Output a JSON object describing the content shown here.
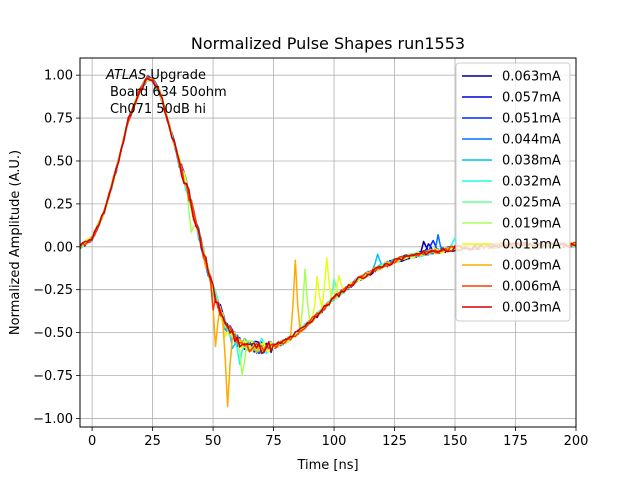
{
  "chart_data": {
    "type": "line",
    "title": "Normalized Pulse Shapes run1553",
    "xlabel": "Time [ns]",
    "ylabel": "Normalized Amplitude (A.U.)",
    "xlim": [
      -5,
      200
    ],
    "ylim": [
      -1.05,
      1.1
    ],
    "x_ticks": [
      0,
      25,
      50,
      75,
      100,
      125,
      150,
      175,
      200
    ],
    "x_tick_labels": [
      "0",
      "25",
      "50",
      "75",
      "100",
      "125",
      "150",
      "175",
      "200"
    ],
    "y_ticks": [
      -1.0,
      -0.75,
      -0.5,
      -0.25,
      0.0,
      0.25,
      0.5,
      0.75,
      1.0
    ],
    "y_tick_labels": [
      "−1.00",
      "−0.75",
      "−0.50",
      "−0.25",
      "0.00",
      "0.25",
      "0.50",
      "0.75",
      "1.00"
    ],
    "grid": true,
    "legend_position": "top-right",
    "annotation": {
      "atlas": "ATLAS",
      "line1_rest": " Upgrade",
      "line2": "Board 634 50ohm",
      "line3": "Ch071 50dB hi"
    },
    "base_shape": {
      "x": [
        -5,
        0,
        5,
        10,
        15,
        20,
        23,
        25,
        28,
        30,
        35,
        40,
        45,
        50,
        55,
        60,
        65,
        70,
        75,
        80,
        85,
        90,
        95,
        100,
        110,
        120,
        130,
        140,
        150,
        160,
        170,
        180,
        190,
        200
      ],
      "y": [
        0.0,
        0.05,
        0.2,
        0.45,
        0.74,
        0.92,
        0.98,
        0.97,
        0.9,
        0.8,
        0.55,
        0.3,
        0.02,
        -0.25,
        -0.45,
        -0.55,
        -0.58,
        -0.59,
        -0.58,
        -0.55,
        -0.5,
        -0.44,
        -0.37,
        -0.3,
        -0.19,
        -0.11,
        -0.06,
        -0.03,
        -0.01,
        0.0,
        0.01,
        0.01,
        0.01,
        0.01
      ]
    },
    "series": [
      {
        "name": "0.063mA",
        "color": "#00008f",
        "glitches": [
          [
            137,
            0.03
          ],
          [
            142,
            -0.05
          ]
        ]
      },
      {
        "name": "0.057mA",
        "color": "#0000d6",
        "glitches": [
          [
            62,
            -0.58
          ],
          [
            139,
            0.02
          ]
        ]
      },
      {
        "name": "0.051mA",
        "color": "#0029ff",
        "glitches": [
          [
            38,
            0.43
          ],
          [
            141,
            0.05
          ]
        ]
      },
      {
        "name": "0.044mA",
        "color": "#0073ff",
        "glitches": [
          [
            44,
            0.12
          ],
          [
            143,
            0.06
          ]
        ]
      },
      {
        "name": "0.038mA",
        "color": "#00c0ff",
        "glitches": [
          [
            58,
            -0.6
          ],
          [
            118,
            -0.05
          ]
        ]
      },
      {
        "name": "0.032mA",
        "color": "#19ffe6",
        "glitches": [
          [
            61,
            -0.67
          ],
          [
            70,
            -0.52
          ],
          [
            150,
            0.05
          ]
        ]
      },
      {
        "name": "0.025mA",
        "color": "#66ff99",
        "glitches": [
          [
            65,
            -0.62
          ],
          [
            100,
            -0.2
          ]
        ]
      },
      {
        "name": "0.019mA",
        "color": "#a6ff59",
        "glitches": [
          [
            41,
            0.06
          ],
          [
            62,
            -0.78
          ],
          [
            88,
            -0.12
          ]
        ]
      },
      {
        "name": "0.013mA",
        "color": "#e6ff19",
        "glitches": [
          [
            55,
            -0.5
          ],
          [
            93,
            -0.18
          ],
          [
            97,
            -0.05
          ],
          [
            102,
            -0.18
          ]
        ]
      },
      {
        "name": "0.009mA",
        "color": "#ffab00",
        "glitches": [
          [
            51,
            -0.6
          ],
          [
            56,
            -0.96
          ],
          [
            84,
            -0.08
          ]
        ]
      },
      {
        "name": "0.006mA",
        "color": "#ff3b00",
        "glitches": [
          [
            50,
            -0.35
          ]
        ]
      },
      {
        "name": "0.003mA",
        "color": "#d60000",
        "glitches": []
      }
    ]
  }
}
